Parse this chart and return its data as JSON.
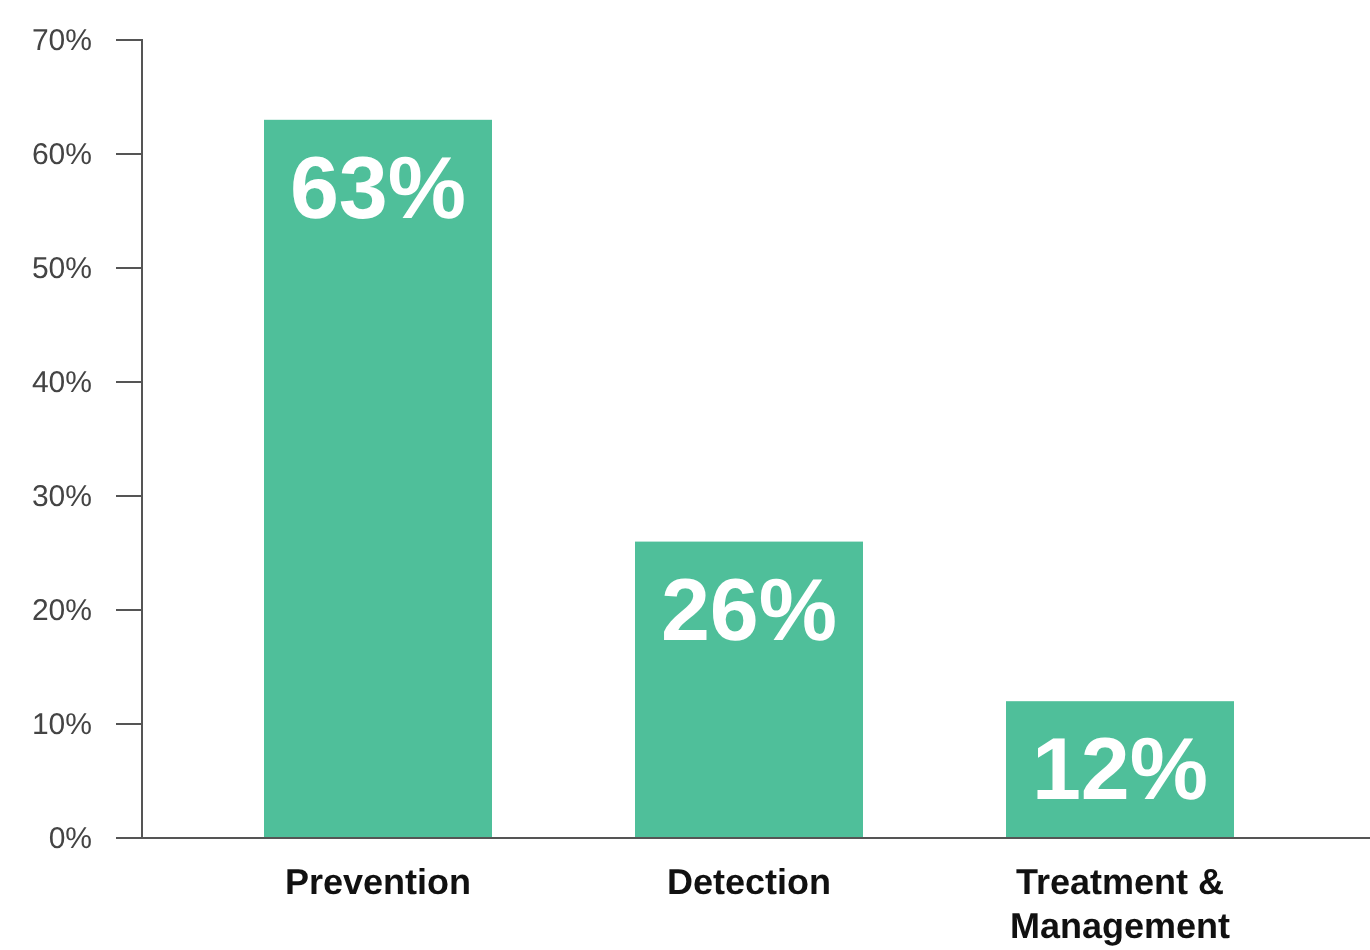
{
  "chart_data": {
    "type": "bar",
    "categories": [
      "Prevention",
      "Detection",
      "Treatment & Management"
    ],
    "values": [
      63,
      26,
      12
    ],
    "color": "#4fbf9a",
    "ylim": [
      0,
      70
    ],
    "yticks": [
      {
        "value": 0,
        "label": "0%"
      },
      {
        "value": 10,
        "label": "10%"
      },
      {
        "value": 20,
        "label": "20%"
      },
      {
        "value": 30,
        "label": "30%"
      },
      {
        "value": 40,
        "label": "40%"
      },
      {
        "value": 50,
        "label": "50%"
      },
      {
        "value": 60,
        "label": "60%"
      },
      {
        "value": 70,
        "label": "70%"
      }
    ],
    "value_labels": [
      "63%",
      "26%",
      "12%"
    ],
    "grid": false
  }
}
